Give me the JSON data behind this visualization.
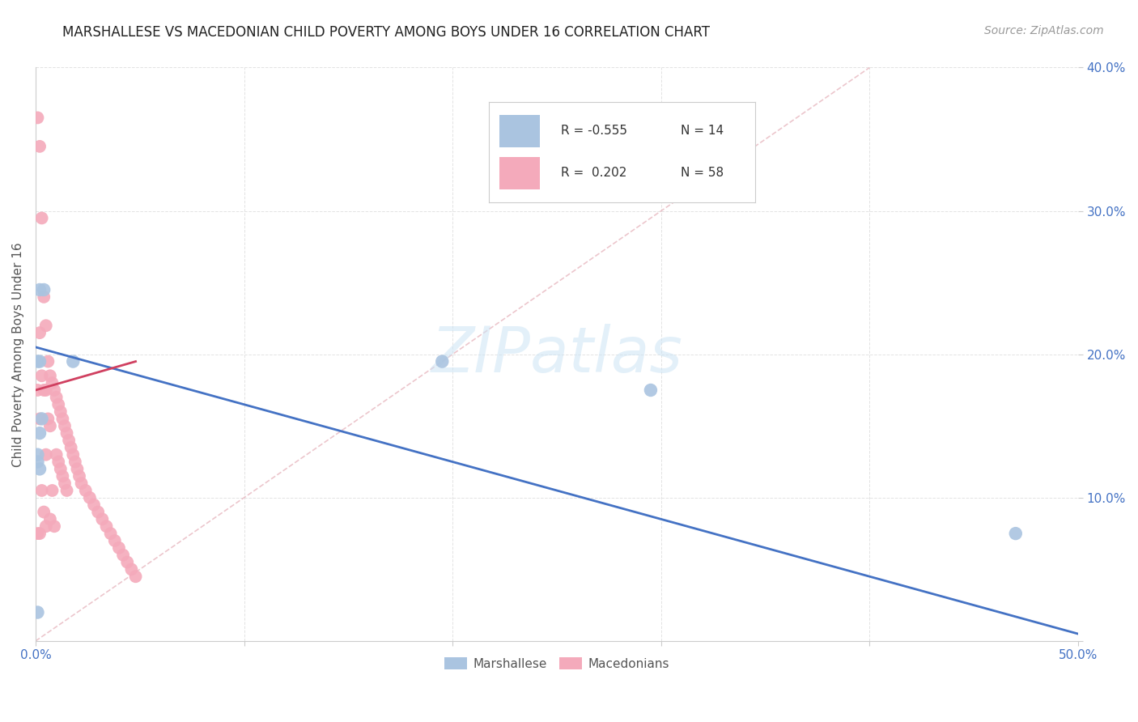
{
  "title": "MARSHALLESE VS MACEDONIAN CHILD POVERTY AMONG BOYS UNDER 16 CORRELATION CHART",
  "source": "Source: ZipAtlas.com",
  "ylabel": "Child Poverty Among Boys Under 16",
  "xlim": [
    0.0,
    0.5
  ],
  "ylim": [
    0.0,
    0.4
  ],
  "background_color": "#ffffff",
  "grid_color": "#e0e0e0",
  "marshallese_color": "#aac4e0",
  "macedonian_color": "#f4aabb",
  "marshallese_line_color": "#4472c4",
  "macedonian_line_color": "#d04060",
  "diagonal_color": "#e8b8c0",
  "tick_label_color": "#4472c4",
  "marshallese_x": [
    0.002,
    0.004,
    0.018,
    0.002,
    0.001,
    0.003,
    0.002,
    0.001,
    0.001,
    0.002,
    0.001,
    0.195,
    0.295,
    0.47
  ],
  "marshallese_y": [
    0.245,
    0.245,
    0.195,
    0.195,
    0.195,
    0.155,
    0.145,
    0.13,
    0.125,
    0.12,
    0.02,
    0.195,
    0.175,
    0.075
  ],
  "macedonian_x": [
    0.001,
    0.001,
    0.001,
    0.002,
    0.002,
    0.002,
    0.002,
    0.003,
    0.003,
    0.003,
    0.004,
    0.004,
    0.004,
    0.005,
    0.005,
    0.005,
    0.005,
    0.006,
    0.006,
    0.007,
    0.007,
    0.007,
    0.008,
    0.008,
    0.009,
    0.009,
    0.01,
    0.01,
    0.011,
    0.011,
    0.012,
    0.012,
    0.013,
    0.013,
    0.014,
    0.014,
    0.015,
    0.015,
    0.016,
    0.017,
    0.018,
    0.019,
    0.02,
    0.021,
    0.022,
    0.024,
    0.026,
    0.028,
    0.03,
    0.032,
    0.034,
    0.036,
    0.038,
    0.04,
    0.042,
    0.044,
    0.046,
    0.048
  ],
  "macedonian_y": [
    0.365,
    0.175,
    0.075,
    0.345,
    0.215,
    0.155,
    0.075,
    0.295,
    0.185,
    0.105,
    0.24,
    0.175,
    0.09,
    0.22,
    0.175,
    0.13,
    0.08,
    0.195,
    0.155,
    0.185,
    0.15,
    0.085,
    0.18,
    0.105,
    0.175,
    0.08,
    0.17,
    0.13,
    0.165,
    0.125,
    0.16,
    0.12,
    0.155,
    0.115,
    0.15,
    0.11,
    0.145,
    0.105,
    0.14,
    0.135,
    0.13,
    0.125,
    0.12,
    0.115,
    0.11,
    0.105,
    0.1,
    0.095,
    0.09,
    0.085,
    0.08,
    0.075,
    0.07,
    0.065,
    0.06,
    0.055,
    0.05,
    0.045
  ],
  "blue_line_x0": 0.0,
  "blue_line_y0": 0.205,
  "blue_line_x1": 0.5,
  "blue_line_y1": 0.005,
  "pink_line_x0": 0.0,
  "pink_line_y0": 0.175,
  "pink_line_x1": 0.048,
  "pink_line_y1": 0.195
}
